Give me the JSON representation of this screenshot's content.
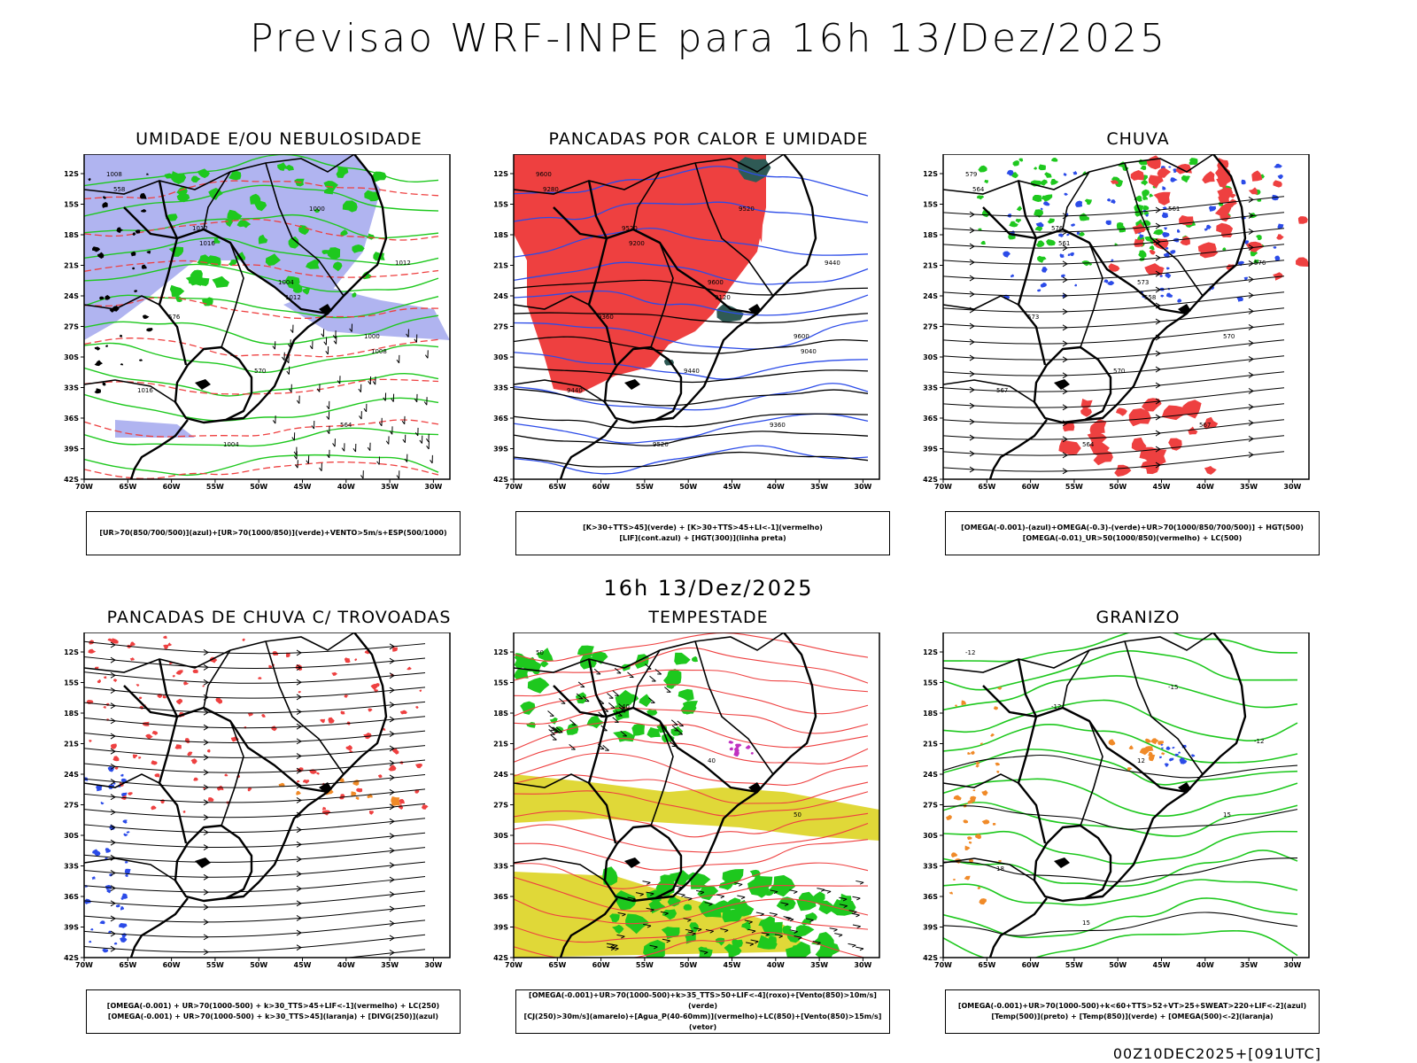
{
  "title": "Previsao WRF-INPE  para 16h 13/Dez/2025",
  "subtitle": "16h 13/Dez/2025",
  "footer": "00Z10DEC2025+[091UTC]",
  "axes": {
    "lat_labels": [
      "12S",
      "15S",
      "18S",
      "21S",
      "24S",
      "27S",
      "30S",
      "33S",
      "36S",
      "39S",
      "42S"
    ],
    "lon_labels": [
      "70W",
      "65W",
      "60W",
      "55W",
      "50W",
      "45W",
      "40W",
      "35W",
      "30W"
    ]
  },
  "colors": {
    "blue_fill": "#b0b4f0",
    "green": "#1ec81e",
    "red": "#ee4040",
    "yellow": "#e0d838",
    "orange": "#f08a28",
    "dark_teal": "#2f5a55",
    "blue_line": "#2b4be8",
    "purple": "#c030c0"
  },
  "panels": [
    {
      "id": "umidade",
      "title": "UMIDADE E/OU NEBULOSIDADE",
      "legend": [
        "[UR>70(850/700/500)](azul)+[UR>70(1000/850)](verde)+VENTO>5m/s+ESP(500/1000)"
      ],
      "labels": [
        "1008",
        "1012",
        "1004",
        "1000",
        "1016",
        "1004",
        "1000",
        "1012",
        "576",
        "570",
        "564",
        "558",
        "1016",
        "1012",
        "1008"
      ]
    },
    {
      "id": "pancadas-calor",
      "title": "PANCADAS POR CALOR E UMIDADE",
      "legend": [
        "[K>30+TTS>45](verde) + [K>30+TTS>45+LI<-1](vermelho)",
        "[LIF](cont.azul) + [HGT(300)](linha preta)"
      ],
      "labels": [
        "9600",
        "9520",
        "9600",
        "9600",
        "9440",
        "9520",
        "9520",
        "9440",
        "9360",
        "9440",
        "9360",
        "9280",
        "9200",
        "9120",
        "9040"
      ]
    },
    {
      "id": "chuva",
      "title": "CHUVA",
      "legend": [
        "[OMEGA(-0.001)-(azul)+OMEGA(-0.3)-(verde)+UR>70(1000/850/700/500)] + HGT(500)",
        "[OMEGA(-0.01)_UR>50(1000/850)(vermelho) + LC(500)"
      ],
      "labels": [
        "579",
        "576",
        "573",
        "570",
        "567",
        "564",
        "561",
        "576",
        "573",
        "570",
        "567",
        "564",
        "561",
        "558"
      ]
    },
    {
      "id": "trovoadas",
      "title": "PANCADAS DE CHUVA C/ TROVOADAS",
      "legend": [
        "[OMEGA(-0.001) + UR>70(1000-500) + k>30_TTS>45+LIF<-1](vermelho) + LC(250)",
        "[OMEGA(-0.001) + UR>70(1000-500) + k>30_TTS>45](laranja) + [DIVG(250)](azul)"
      ],
      "labels": []
    },
    {
      "id": "tempestade",
      "title": "TEMPESTADE",
      "legend": [
        "[OMEGA(-0.001)+UR>70(1000-500)+k>35_TTS>50+LIF<-4](roxo)+[Vento(850)>10m/s](verde)",
        "[CJ(250)>30m/s](amarelo)+[Agua_P(40-60mm)](vermelho)+LC(850)+[Vento(850)>15m/s](vetor)"
      ],
      "labels": [
        "50",
        "40",
        "40",
        "50"
      ]
    },
    {
      "id": "granizo",
      "title": "GRANIZO",
      "legend": [
        "[OMEGA(-0.001)+UR>70(1000-500)+k<60+TTS>52+VT>25+SWEAT>220+LIF<-2](azul)",
        "[Temp(500)](preto) + [Temp(850)](verde) + [OMEGA(500)<-2](laranja)"
      ],
      "labels": [
        "-12",
        "-12",
        "12",
        "15",
        "18",
        "15",
        "-15",
        "-12"
      ]
    }
  ]
}
